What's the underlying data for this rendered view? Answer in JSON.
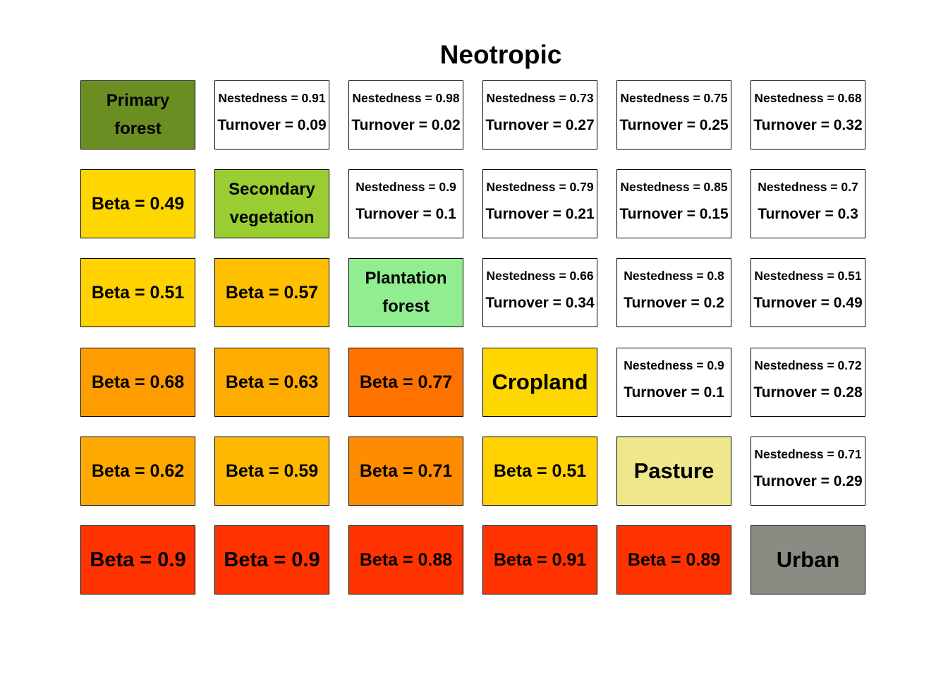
{
  "chart_data": {
    "type": "table",
    "title": "Neotropic",
    "categories": [
      "Primary forest",
      "Secondary vegetation",
      "Plantation forest",
      "Cropland",
      "Pasture",
      "Urban"
    ],
    "diagonal": [
      {
        "label": "Primary forest",
        "lines": [
          "Primary",
          "forest"
        ],
        "color": "#6B8E23"
      },
      {
        "label": "Secondary vegetation",
        "lines": [
          "Secondary",
          "vegetation"
        ],
        "color": "#9ACD32"
      },
      {
        "label": "Plantation forest",
        "lines": [
          "Plantation",
          "forest"
        ],
        "color": "#90EE90"
      },
      {
        "label": "Cropland",
        "lines": [
          "Cropland"
        ],
        "color": "#FFD700"
      },
      {
        "label": "Pasture",
        "lines": [
          "Pasture"
        ],
        "color": "#F0E68C"
      },
      {
        "label": "Urban",
        "lines": [
          "Urban"
        ],
        "color": "#8B8B83"
      }
    ],
    "beta": [
      {
        "row": 1,
        "col": 0,
        "value": 0.49,
        "text": "Beta = 0.49",
        "color": "#FFD700"
      },
      {
        "row": 2,
        "col": 0,
        "value": 0.51,
        "text": "Beta = 0.51",
        "color": "#FFD200"
      },
      {
        "row": 2,
        "col": 1,
        "value": 0.57,
        "text": "Beta = 0.57",
        "color": "#FFC000"
      },
      {
        "row": 3,
        "col": 0,
        "value": 0.68,
        "text": "Beta = 0.68",
        "color": "#FF9C00"
      },
      {
        "row": 3,
        "col": 1,
        "value": 0.63,
        "text": "Beta = 0.63",
        "color": "#FFAC00"
      },
      {
        "row": 3,
        "col": 2,
        "value": 0.77,
        "text": "Beta = 0.77",
        "color": "#FF7200"
      },
      {
        "row": 4,
        "col": 0,
        "value": 0.62,
        "text": "Beta = 0.62",
        "color": "#FFAA00"
      },
      {
        "row": 4,
        "col": 1,
        "value": 0.59,
        "text": "Beta = 0.59",
        "color": "#FFB800"
      },
      {
        "row": 4,
        "col": 2,
        "value": 0.71,
        "text": "Beta = 0.71",
        "color": "#FF8C00"
      },
      {
        "row": 4,
        "col": 3,
        "value": 0.51,
        "text": "Beta = 0.51",
        "color": "#FFD200"
      },
      {
        "row": 5,
        "col": 0,
        "value": 0.9,
        "text": "Beta = 0.9",
        "color": "#FF3300"
      },
      {
        "row": 5,
        "col": 1,
        "value": 0.9,
        "text": "Beta = 0.9",
        "color": "#FF3300"
      },
      {
        "row": 5,
        "col": 2,
        "value": 0.88,
        "text": "Beta = 0.88",
        "color": "#FF3300"
      },
      {
        "row": 5,
        "col": 3,
        "value": 0.91,
        "text": "Beta = 0.91",
        "color": "#FF3300"
      },
      {
        "row": 5,
        "col": 4,
        "value": 0.89,
        "text": "Beta = 0.89",
        "color": "#FF3300"
      }
    ],
    "partition": [
      {
        "row": 0,
        "col": 1,
        "nestedness": 0.91,
        "turnover": 0.09,
        "nest_text": "Nestedness = 0.91",
        "turn_text": "Turnover = 0.09"
      },
      {
        "row": 0,
        "col": 2,
        "nestedness": 0.98,
        "turnover": 0.02,
        "nest_text": "Nestedness = 0.98",
        "turn_text": "Turnover = 0.02"
      },
      {
        "row": 0,
        "col": 3,
        "nestedness": 0.73,
        "turnover": 0.27,
        "nest_text": "Nestedness = 0.73",
        "turn_text": "Turnover = 0.27"
      },
      {
        "row": 0,
        "col": 4,
        "nestedness": 0.75,
        "turnover": 0.25,
        "nest_text": "Nestedness = 0.75",
        "turn_text": "Turnover = 0.25"
      },
      {
        "row": 0,
        "col": 5,
        "nestedness": 0.68,
        "turnover": 0.32,
        "nest_text": "Nestedness = 0.68",
        "turn_text": "Turnover = 0.32"
      },
      {
        "row": 1,
        "col": 2,
        "nestedness": 0.9,
        "turnover": 0.1,
        "nest_text": "Nestedness = 0.9",
        "turn_text": "Turnover = 0.1"
      },
      {
        "row": 1,
        "col": 3,
        "nestedness": 0.79,
        "turnover": 0.21,
        "nest_text": "Nestedness = 0.79",
        "turn_text": "Turnover = 0.21"
      },
      {
        "row": 1,
        "col": 4,
        "nestedness": 0.85,
        "turnover": 0.15,
        "nest_text": "Nestedness = 0.85",
        "turn_text": "Turnover = 0.15"
      },
      {
        "row": 1,
        "col": 5,
        "nestedness": 0.7,
        "turnover": 0.3,
        "nest_text": "Nestedness = 0.7",
        "turn_text": "Turnover = 0.3"
      },
      {
        "row": 2,
        "col": 3,
        "nestedness": 0.66,
        "turnover": 0.34,
        "nest_text": "Nestedness = 0.66",
        "turn_text": "Turnover = 0.34"
      },
      {
        "row": 2,
        "col": 4,
        "nestedness": 0.8,
        "turnover": 0.2,
        "nest_text": "Nestedness = 0.8",
        "turn_text": "Turnover = 0.2"
      },
      {
        "row": 2,
        "col": 5,
        "nestedness": 0.51,
        "turnover": 0.49,
        "nest_text": "Nestedness = 0.51",
        "turn_text": "Turnover = 0.49"
      },
      {
        "row": 3,
        "col": 4,
        "nestedness": 0.9,
        "turnover": 0.1,
        "nest_text": "Nestedness = 0.9",
        "turn_text": "Turnover = 0.1"
      },
      {
        "row": 3,
        "col": 5,
        "nestedness": 0.72,
        "turnover": 0.28,
        "nest_text": "Nestedness = 0.72",
        "turn_text": "Turnover = 0.28"
      },
      {
        "row": 4,
        "col": 5,
        "nestedness": 0.71,
        "turnover": 0.29,
        "nest_text": "Nestedness = 0.71",
        "turn_text": "Turnover = 0.29"
      }
    ]
  }
}
